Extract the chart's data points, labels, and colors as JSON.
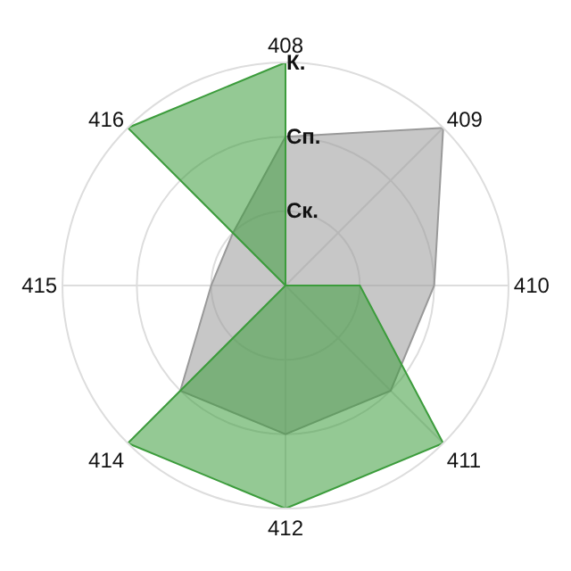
{
  "chart_data": {
    "type": "radar",
    "categories": [
      "408",
      "409",
      "410",
      "411",
      "412",
      "414",
      "415",
      "416"
    ],
    "series": [
      {
        "color": "#999999",
        "values": [
          2,
          3,
          2,
          2,
          2,
          2,
          1,
          1
        ]
      },
      {
        "color": "#3c9c3c",
        "values": [
          3,
          0,
          1,
          3,
          3,
          3,
          0,
          3
        ]
      }
    ],
    "ylim": [
      0,
      3
    ],
    "yticks": [
      {
        "value": 1,
        "label": "Ск."
      },
      {
        "value": 2,
        "label": "Сп."
      },
      {
        "value": 3,
        "label": "К."
      }
    ],
    "grid": true
  }
}
